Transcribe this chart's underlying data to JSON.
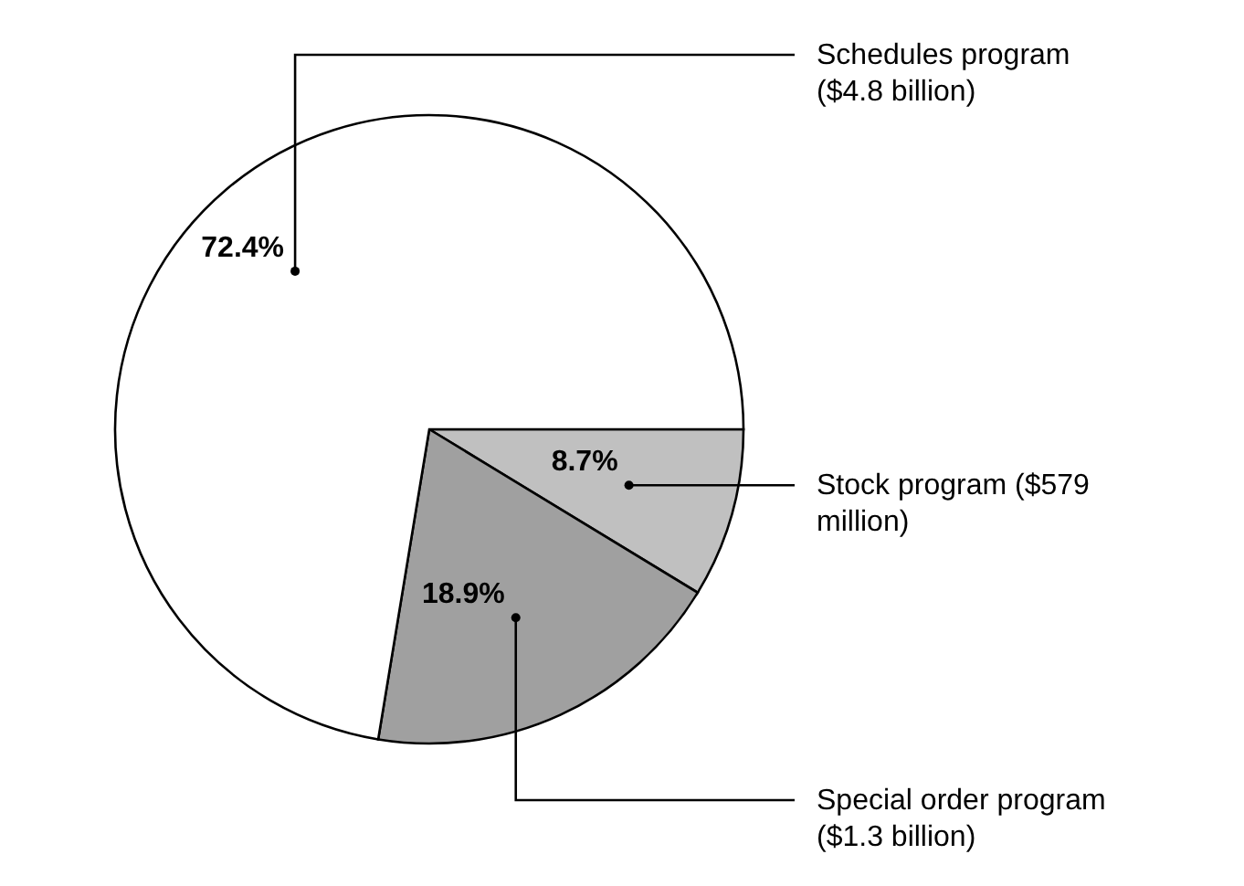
{
  "chart_data": {
    "type": "pie",
    "categories": [
      "Stock program ($579 million)",
      "Special order program ($1.3 billion)",
      "Schedules program ($4.8 billion)"
    ],
    "values": [
      8.7,
      18.9,
      72.4
    ],
    "value_labels": [
      "8.7%",
      "18.9%",
      "72.4%"
    ],
    "colors": [
      "#c0c0c0",
      "#a0a0a0",
      "#ffffff"
    ]
  }
}
